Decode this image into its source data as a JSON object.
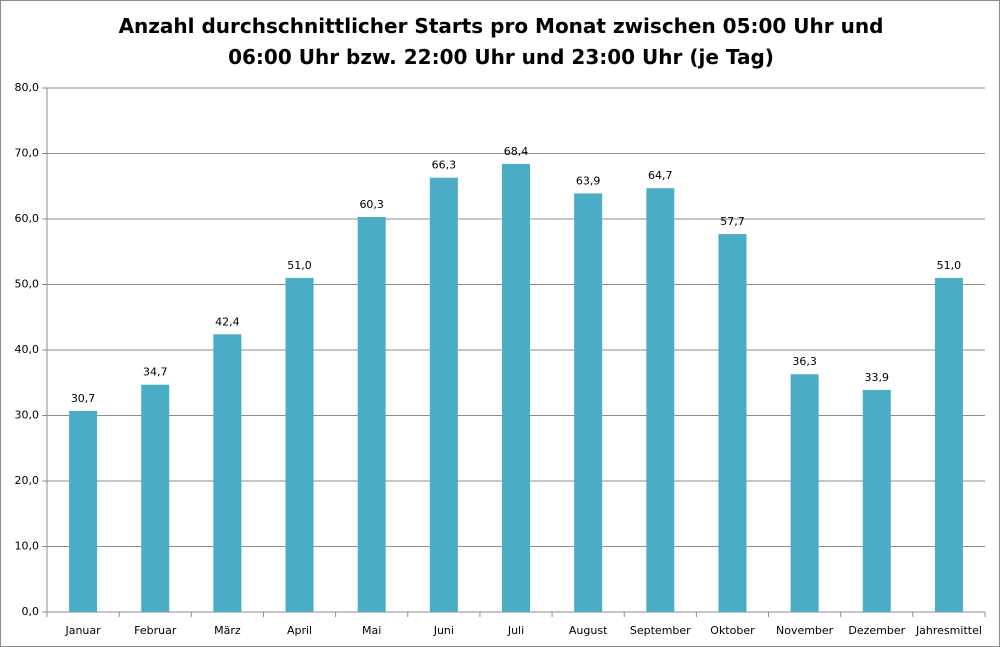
{
  "chart_data": {
    "type": "bar",
    "title": "Anzahl durchschnittlicher Starts pro Monat zwischen 05:00 Uhr und 06:00 Uhr bzw. 22:00 Uhr und 23:00 Uhr (je Tag)",
    "categories": [
      "Januar",
      "Februar",
      "März",
      "April",
      "Mai",
      "Juni",
      "Juli",
      "August",
      "September",
      "Oktober",
      "November",
      "Dezember",
      "Jahresmittel"
    ],
    "values": [
      30.7,
      34.7,
      42.4,
      51.0,
      60.3,
      66.3,
      68.4,
      63.9,
      64.7,
      57.7,
      36.3,
      33.9,
      51.0
    ],
    "value_labels": [
      "30,7",
      "34,7",
      "42,4",
      "51,0",
      "60,3",
      "66,3",
      "68,4",
      "63,9",
      "64,7",
      "57,7",
      "36,3",
      "33,9",
      "51,0"
    ],
    "color": "#4bacc6",
    "ylim": [
      0,
      80
    ],
    "yticks": [
      {
        "value": 0,
        "label": "0,0"
      },
      {
        "value": 10,
        "label": "10,0"
      },
      {
        "value": 20,
        "label": "20,0"
      },
      {
        "value": 30,
        "label": "30,0"
      },
      {
        "value": 40,
        "label": "40,0"
      },
      {
        "value": 50,
        "label": "50,0"
      },
      {
        "value": 60,
        "label": "60,0"
      },
      {
        "value": 70,
        "label": "70,0"
      },
      {
        "value": 80,
        "label": "80,0"
      }
    ],
    "grid": true
  }
}
